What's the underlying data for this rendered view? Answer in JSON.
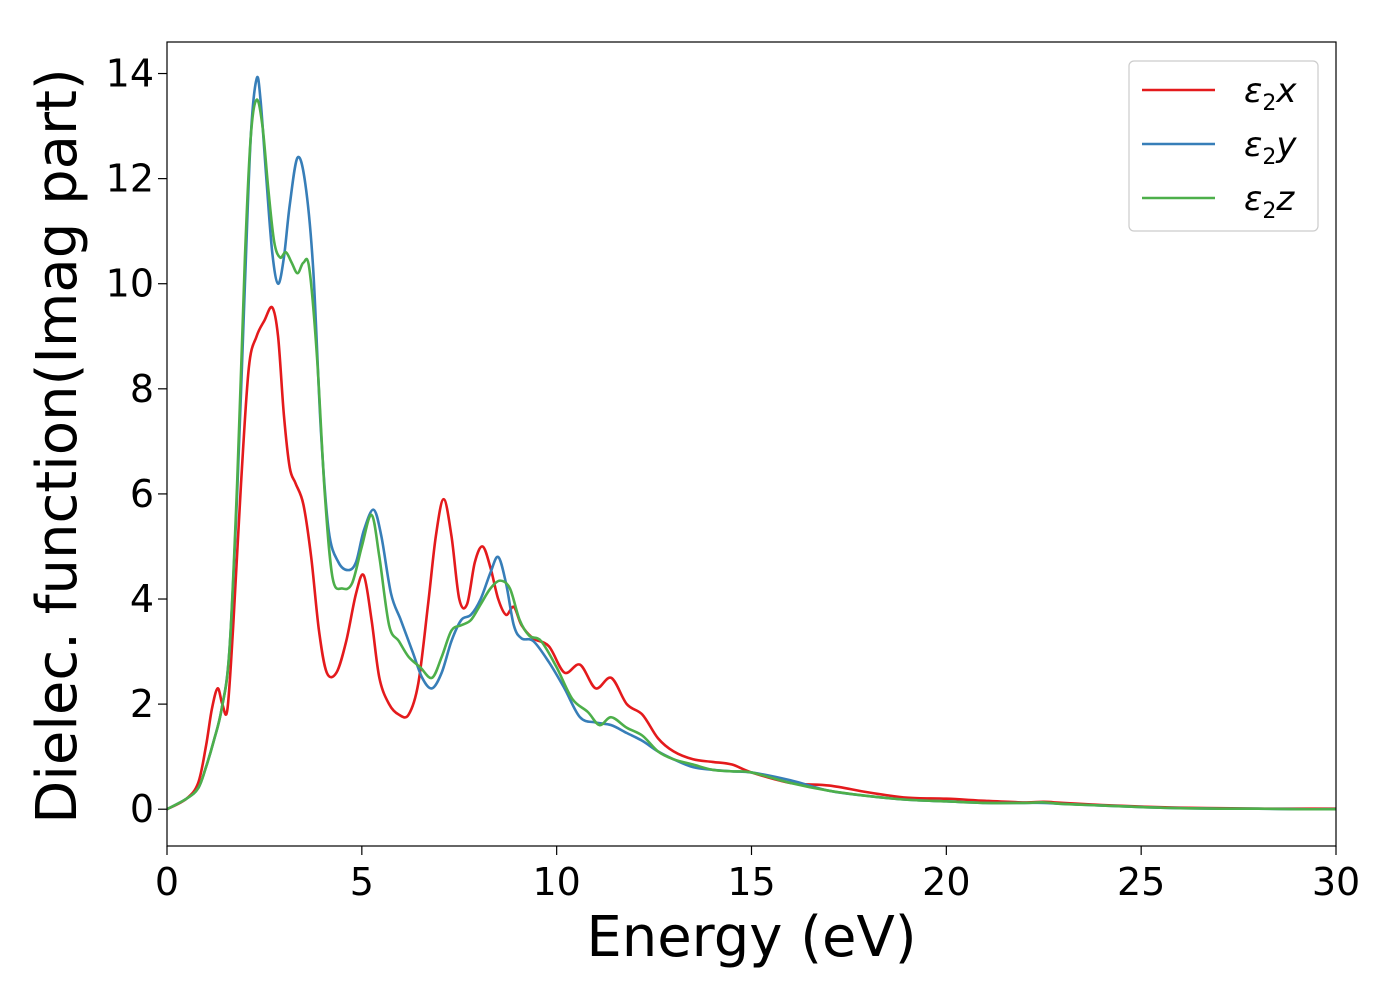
{
  "chart_data": {
    "type": "line",
    "title": "",
    "xlabel": "Energy (eV)",
    "ylabel": "Dielec. function(Imag part)",
    "xlim": [
      0,
      30
    ],
    "ylim": [
      -0.7,
      14.6
    ],
    "xticks": [
      0,
      5,
      10,
      15,
      20,
      25,
      30
    ],
    "yticks": [
      0,
      2,
      4,
      6,
      8,
      10,
      12,
      14
    ],
    "grid": false,
    "legend_position": "top-right",
    "series": [
      {
        "name": "ε2x",
        "legend": {
          "base": "ε",
          "sub": "2",
          "tail": "x"
        },
        "color": "#e41a1c",
        "x": [
          0,
          0.5,
          0.8,
          1.0,
          1.15,
          1.3,
          1.42,
          1.55,
          1.7,
          1.9,
          2.1,
          2.3,
          2.5,
          2.7,
          2.85,
          3.0,
          3.15,
          3.3,
          3.5,
          3.7,
          3.9,
          4.1,
          4.35,
          4.6,
          4.85,
          5.05,
          5.25,
          5.45,
          5.7,
          5.95,
          6.2,
          6.45,
          6.7,
          6.9,
          7.1,
          7.3,
          7.5,
          7.7,
          7.9,
          8.1,
          8.3,
          8.5,
          8.7,
          8.9,
          9.1,
          9.4,
          9.8,
          10.2,
          10.6,
          11.0,
          11.4,
          11.8,
          12.2,
          12.6,
          13.0,
          13.5,
          14.0,
          14.5,
          15.0,
          16.0,
          17.0,
          18.0,
          19.0,
          20.0,
          21.0,
          22.0,
          22.5,
          23.0,
          24.0,
          25.0,
          26.0,
          27.0,
          28.0,
          29.0,
          30.0
        ],
        "y": [
          0.0,
          0.2,
          0.5,
          1.2,
          1.9,
          2.3,
          2.0,
          1.9,
          3.5,
          6.2,
          8.4,
          9.0,
          9.3,
          9.55,
          9.0,
          7.5,
          6.5,
          6.2,
          5.8,
          4.8,
          3.4,
          2.6,
          2.6,
          3.2,
          4.1,
          4.45,
          3.6,
          2.5,
          2.0,
          1.8,
          1.8,
          2.4,
          3.9,
          5.2,
          5.9,
          5.2,
          4.0,
          3.9,
          4.7,
          5.0,
          4.6,
          4.0,
          3.7,
          3.85,
          3.5,
          3.25,
          3.1,
          2.6,
          2.75,
          2.3,
          2.5,
          2.0,
          1.8,
          1.35,
          1.1,
          0.95,
          0.9,
          0.85,
          0.7,
          0.5,
          0.45,
          0.32,
          0.22,
          0.2,
          0.16,
          0.13,
          0.14,
          0.12,
          0.08,
          0.05,
          0.03,
          0.02,
          0.01,
          0.01,
          0.01
        ]
      },
      {
        "name": "ε2y",
        "legend": {
          "base": "ε",
          "sub": "2",
          "tail": "y"
        },
        "color": "#377eb8",
        "x": [
          0,
          0.5,
          0.8,
          1.0,
          1.2,
          1.4,
          1.6,
          1.8,
          2.0,
          2.15,
          2.3,
          2.4,
          2.55,
          2.7,
          2.85,
          3.0,
          3.15,
          3.35,
          3.55,
          3.75,
          3.95,
          4.15,
          4.4,
          4.65,
          4.85,
          5.05,
          5.3,
          5.5,
          5.75,
          6.0,
          6.3,
          6.55,
          6.8,
          7.05,
          7.3,
          7.55,
          7.8,
          8.05,
          8.3,
          8.5,
          8.7,
          8.9,
          9.1,
          9.4,
          9.8,
          10.2,
          10.6,
          11.0,
          11.4,
          11.8,
          12.2,
          12.6,
          13.0,
          13.5,
          14.0,
          14.5,
          15.0,
          16.0,
          17.0,
          18.0,
          19.0,
          20.0,
          21.0,
          22.0,
          22.5,
          23.0,
          24.0,
          25.0,
          26.0,
          27.0,
          28.0,
          29.0,
          30.0
        ],
        "y": [
          0.0,
          0.2,
          0.4,
          0.8,
          1.3,
          1.9,
          3.0,
          6.0,
          10.0,
          12.8,
          13.9,
          13.5,
          12.0,
          10.6,
          10.0,
          10.5,
          11.5,
          12.4,
          11.9,
          10.3,
          7.2,
          5.3,
          4.7,
          4.55,
          4.7,
          5.3,
          5.7,
          5.2,
          4.1,
          3.6,
          3.0,
          2.5,
          2.3,
          2.6,
          3.2,
          3.6,
          3.7,
          4.0,
          4.5,
          4.8,
          4.3,
          3.5,
          3.25,
          3.2,
          2.8,
          2.3,
          1.75,
          1.65,
          1.6,
          1.45,
          1.3,
          1.1,
          0.95,
          0.8,
          0.75,
          0.72,
          0.7,
          0.55,
          0.35,
          0.25,
          0.18,
          0.15,
          0.12,
          0.12,
          0.12,
          0.1,
          0.07,
          0.04,
          0.02,
          0.01,
          0.01,
          0.0,
          0.0
        ]
      },
      {
        "name": "ε2z",
        "legend": {
          "base": "ε",
          "sub": "2",
          "tail": "z"
        },
        "color": "#4daf4a",
        "x": [
          0,
          0.5,
          0.8,
          1.0,
          1.2,
          1.4,
          1.6,
          1.8,
          2.0,
          2.15,
          2.3,
          2.45,
          2.6,
          2.75,
          2.9,
          3.05,
          3.2,
          3.35,
          3.5,
          3.65,
          3.85,
          4.05,
          4.25,
          4.5,
          4.75,
          5.0,
          5.25,
          5.45,
          5.7,
          5.95,
          6.2,
          6.5,
          6.8,
          7.05,
          7.3,
          7.55,
          7.8,
          8.05,
          8.3,
          8.55,
          8.8,
          9.05,
          9.3,
          9.6,
          10.0,
          10.4,
          10.8,
          11.1,
          11.4,
          11.8,
          12.2,
          12.6,
          13.0,
          13.5,
          14.0,
          14.5,
          15.0,
          16.0,
          17.0,
          18.0,
          19.0,
          20.0,
          21.0,
          22.0,
          22.5,
          23.0,
          24.0,
          25.0,
          26.0,
          27.0,
          28.0,
          29.0,
          30.0
        ],
        "y": [
          0.0,
          0.2,
          0.4,
          0.8,
          1.3,
          1.9,
          3.0,
          6.2,
          10.5,
          12.8,
          13.5,
          13.0,
          11.8,
          10.8,
          10.5,
          10.6,
          10.4,
          10.2,
          10.4,
          10.3,
          8.6,
          6.0,
          4.4,
          4.2,
          4.3,
          5.0,
          5.6,
          4.8,
          3.5,
          3.2,
          2.9,
          2.7,
          2.5,
          2.9,
          3.4,
          3.5,
          3.6,
          3.9,
          4.2,
          4.35,
          4.2,
          3.6,
          3.3,
          3.2,
          2.7,
          2.1,
          1.85,
          1.6,
          1.75,
          1.55,
          1.4,
          1.1,
          0.95,
          0.85,
          0.75,
          0.72,
          0.7,
          0.5,
          0.35,
          0.25,
          0.18,
          0.15,
          0.12,
          0.12,
          0.13,
          0.1,
          0.07,
          0.04,
          0.02,
          0.01,
          0.01,
          0.0,
          0.0
        ]
      }
    ]
  }
}
